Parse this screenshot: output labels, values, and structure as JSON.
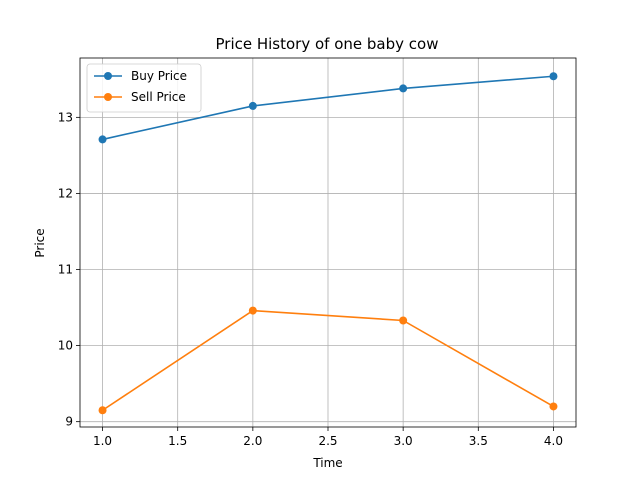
{
  "chart_data": {
    "type": "line",
    "title": "Price History of one baby cow",
    "xlabel": "Time",
    "ylabel": "Price",
    "x": [
      1.0,
      2.0,
      3.0,
      4.0
    ],
    "xlim": [
      0.85,
      4.15
    ],
    "ylim": [
      8.93,
      13.78
    ],
    "xticks": [
      "1.0",
      "1.5",
      "2.0",
      "2.5",
      "3.0",
      "3.5",
      "4.0"
    ],
    "yticks": [
      "9",
      "10",
      "11",
      "12",
      "13"
    ],
    "grid": true,
    "legend": "top-left",
    "series": [
      {
        "name": "Buy Price",
        "color": "#1f77b4",
        "marker": "circle",
        "values": [
          12.71,
          13.15,
          13.38,
          13.54
        ]
      },
      {
        "name": "Sell Price",
        "color": "#ff7f0e",
        "marker": "circle",
        "values": [
          9.15,
          10.46,
          10.33,
          9.2
        ]
      }
    ]
  }
}
